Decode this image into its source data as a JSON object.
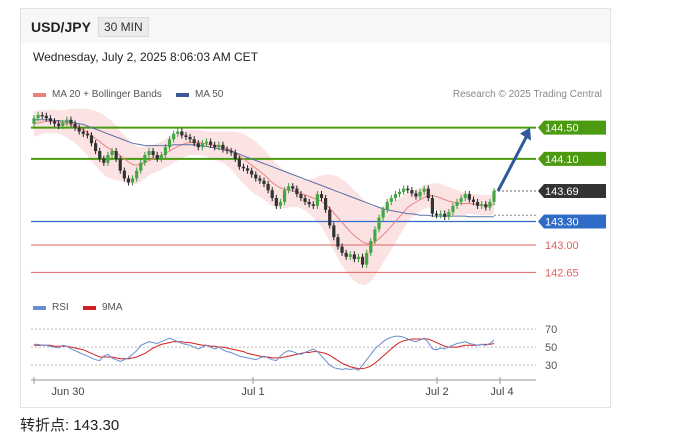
{
  "header": {
    "symbol": "USD/JPY",
    "timeframe": "30 MIN"
  },
  "timestamp": "Wednesday, July 2, 2025 8:06:03 AM CET",
  "legend_main": [
    {
      "label": "MA 20 + Bollinger Bands",
      "color": "#f08080"
    },
    {
      "label": "MA 50",
      "color": "#3a5a9a"
    }
  ],
  "legend_rsi": [
    {
      "label": "RSI",
      "color": "#6a8ed0"
    },
    {
      "label": "9MA",
      "color": "#d42020"
    }
  ],
  "copyright": "Research © 2025 Trading Central",
  "footer": {
    "pivot_text": "转折点: 143.30"
  },
  "colors": {
    "resistance": "#4c9a10",
    "pivot": "#2f6cc7",
    "support": "#e06060",
    "price": "#333333",
    "arrow": "#2f5a9a"
  },
  "chart_data": {
    "type": "candlestick",
    "ylim": [
      142.4,
      144.75
    ],
    "x_tick_labels": [
      "Jun 30",
      "Jul 1",
      "Jul 2",
      "Jul 4"
    ],
    "levels": [
      {
        "value": 144.5,
        "label": "144.50",
        "kind": "resistance"
      },
      {
        "value": 144.1,
        "label": "144.10",
        "kind": "resistance"
      },
      {
        "value": 143.69,
        "label": "143.69",
        "kind": "price"
      },
      {
        "value": 143.3,
        "label": "143.30",
        "kind": "pivot"
      },
      {
        "value": 143.0,
        "label": "143.00",
        "kind": "support"
      },
      {
        "value": 142.65,
        "label": "142.65",
        "kind": "support"
      }
    ],
    "close": [
      144.62,
      144.66,
      144.65,
      144.62,
      144.58,
      144.55,
      144.52,
      144.56,
      144.6,
      144.55,
      144.5,
      144.45,
      144.42,
      144.4,
      144.3,
      144.2,
      144.1,
      144.05,
      144.15,
      144.2,
      144.1,
      143.95,
      143.85,
      143.8,
      143.85,
      143.95,
      144.05,
      144.15,
      144.2,
      144.15,
      144.1,
      144.15,
      144.25,
      144.35,
      144.42,
      144.45,
      144.4,
      144.38,
      144.35,
      144.3,
      144.25,
      144.3,
      144.32,
      144.28,
      144.25,
      144.28,
      144.22,
      144.2,
      144.18,
      144.1,
      144.0,
      143.98,
      143.95,
      143.9,
      143.85,
      143.82,
      143.78,
      143.7,
      143.6,
      143.5,
      143.55,
      143.7,
      143.75,
      143.72,
      143.65,
      143.6,
      143.55,
      143.52,
      143.5,
      143.65,
      143.6,
      143.45,
      143.25,
      143.1,
      142.98,
      142.9,
      142.85,
      142.88,
      142.82,
      142.85,
      142.75,
      142.9,
      143.05,
      143.2,
      143.35,
      143.45,
      143.55,
      143.6,
      143.65,
      143.68,
      143.72,
      143.7,
      143.66,
      143.62,
      143.68,
      143.72,
      143.6,
      143.4,
      143.38,
      143.4,
      143.36,
      143.42,
      143.5,
      143.55,
      143.6,
      143.65,
      143.58,
      143.55,
      143.5,
      143.52,
      143.48,
      143.55,
      143.69
    ],
    "open": [
      144.55,
      144.62,
      144.66,
      144.65,
      144.62,
      144.58,
      144.55,
      144.52,
      144.56,
      144.6,
      144.55,
      144.5,
      144.45,
      144.42,
      144.4,
      144.3,
      144.2,
      144.1,
      144.05,
      144.15,
      144.2,
      144.1,
      143.95,
      143.85,
      143.8,
      143.85,
      143.95,
      144.05,
      144.15,
      144.2,
      144.15,
      144.1,
      144.15,
      144.25,
      144.35,
      144.42,
      144.45,
      144.4,
      144.38,
      144.35,
      144.3,
      144.25,
      144.3,
      144.32,
      144.28,
      144.25,
      144.28,
      144.22,
      144.2,
      144.18,
      144.1,
      144.0,
      143.98,
      143.95,
      143.9,
      143.85,
      143.82,
      143.78,
      143.7,
      143.6,
      143.5,
      143.55,
      143.7,
      143.75,
      143.72,
      143.65,
      143.6,
      143.55,
      143.52,
      143.5,
      143.65,
      143.6,
      143.45,
      143.25,
      143.1,
      142.98,
      142.9,
      142.85,
      142.88,
      142.82,
      142.85,
      142.75,
      142.9,
      143.05,
      143.2,
      143.35,
      143.45,
      143.55,
      143.6,
      143.65,
      143.68,
      143.72,
      143.7,
      143.66,
      143.62,
      143.68,
      143.72,
      143.6,
      143.4,
      143.38,
      143.4,
      143.36,
      143.42,
      143.5,
      143.55,
      143.6,
      143.65,
      143.58,
      143.55,
      143.5,
      143.52,
      143.48,
      143.55
    ],
    "ma20": [
      144.55,
      144.56,
      144.57,
      144.58,
      144.58,
      144.58,
      144.57,
      144.56,
      144.55,
      144.54,
      144.52,
      144.5,
      144.47,
      144.44,
      144.4,
      144.36,
      144.32,
      144.28,
      144.24,
      144.21,
      144.18,
      144.14,
      144.1,
      144.06,
      144.03,
      144.02,
      144.03,
      144.05,
      144.08,
      144.1,
      144.12,
      144.14,
      144.17,
      144.2,
      144.23,
      144.26,
      144.28,
      144.3,
      144.31,
      144.31,
      144.31,
      144.3,
      144.29,
      144.28,
      144.27,
      144.26,
      144.25,
      144.23,
      144.21,
      144.18,
      144.14,
      144.1,
      144.06,
      144.02,
      143.98,
      143.94,
      143.9,
      143.85,
      143.8,
      143.76,
      143.73,
      143.71,
      143.7,
      143.69,
      143.68,
      143.66,
      143.64,
      143.62,
      143.6,
      143.58,
      143.56,
      143.52,
      143.47,
      143.41,
      143.35,
      143.29,
      143.23,
      143.17,
      143.12,
      143.08,
      143.04,
      143.02,
      143.02,
      143.04,
      143.08,
      143.13,
      143.18,
      143.24,
      143.3,
      143.36,
      143.42,
      143.48,
      143.52,
      143.55,
      143.58,
      143.61,
      143.63,
      143.63,
      143.62,
      143.6,
      143.58,
      143.56,
      143.55,
      143.54,
      143.53,
      143.53,
      143.53,
      143.52,
      143.52,
      143.51,
      143.51,
      143.51,
      143.52
    ],
    "ma50": [
      144.6,
      144.6,
      144.6,
      144.6,
      144.6,
      144.59,
      144.59,
      144.58,
      144.58,
      144.57,
      144.56,
      144.55,
      144.54,
      144.52,
      144.5,
      144.48,
      144.46,
      144.44,
      144.42,
      144.4,
      144.38,
      144.36,
      144.34,
      144.32,
      144.3,
      144.29,
      144.28,
      144.27,
      144.27,
      144.27,
      144.27,
      144.27,
      144.27,
      144.27,
      144.28,
      144.28,
      144.28,
      144.28,
      144.28,
      144.28,
      144.27,
      144.27,
      144.26,
      144.25,
      144.24,
      144.23,
      144.22,
      144.21,
      144.2,
      144.18,
      144.16,
      144.14,
      144.12,
      144.1,
      144.08,
      144.06,
      144.04,
      144.02,
      144.0,
      143.98,
      143.96,
      143.94,
      143.92,
      143.9,
      143.88,
      143.86,
      143.84,
      143.82,
      143.8,
      143.78,
      143.76,
      143.74,
      143.72,
      143.7,
      143.68,
      143.66,
      143.64,
      143.62,
      143.6,
      143.58,
      143.56,
      143.54,
      143.52,
      143.5,
      143.48,
      143.46,
      143.45,
      143.44,
      143.43,
      143.42,
      143.41,
      143.4,
      143.4,
      143.39,
      143.38,
      143.38,
      143.38,
      143.37,
      143.37,
      143.37,
      143.37,
      143.37,
      143.37,
      143.37,
      143.37,
      143.37,
      143.36,
      143.36,
      143.36,
      143.36,
      143.36,
      143.36,
      143.36
    ],
    "band_width": [
      0.16,
      0.16,
      0.15,
      0.15,
      0.15,
      0.15,
      0.15,
      0.16,
      0.18,
      0.2,
      0.22,
      0.24,
      0.27,
      0.3,
      0.33,
      0.35,
      0.37,
      0.38,
      0.38,
      0.37,
      0.35,
      0.32,
      0.3,
      0.28,
      0.26,
      0.24,
      0.22,
      0.2,
      0.19,
      0.18,
      0.18,
      0.18,
      0.18,
      0.18,
      0.18,
      0.18,
      0.17,
      0.17,
      0.16,
      0.16,
      0.16,
      0.16,
      0.16,
      0.17,
      0.18,
      0.19,
      0.2,
      0.22,
      0.24,
      0.27,
      0.3,
      0.32,
      0.33,
      0.34,
      0.34,
      0.33,
      0.32,
      0.31,
      0.3,
      0.28,
      0.26,
      0.24,
      0.22,
      0.2,
      0.19,
      0.19,
      0.2,
      0.22,
      0.25,
      0.29,
      0.33,
      0.38,
      0.43,
      0.48,
      0.52,
      0.55,
      0.57,
      0.58,
      0.58,
      0.57,
      0.55,
      0.52,
      0.48,
      0.44,
      0.4,
      0.36,
      0.33,
      0.3,
      0.27,
      0.24,
      0.21,
      0.19,
      0.17,
      0.16,
      0.15,
      0.15,
      0.15,
      0.16,
      0.17,
      0.18,
      0.18,
      0.18,
      0.17,
      0.16,
      0.15,
      0.14,
      0.13,
      0.13,
      0.13,
      0.13,
      0.13,
      0.13,
      0.13
    ],
    "rsi_ylim": [
      20,
      78
    ],
    "rsi_ticks": [
      70,
      50,
      30
    ],
    "rsi": [
      53,
      53,
      52,
      52,
      51,
      50,
      49,
      52,
      51,
      48,
      46,
      44,
      42,
      40,
      38,
      36,
      35,
      40,
      42,
      38,
      36,
      34,
      36,
      38,
      42,
      46,
      52,
      54,
      56,
      55,
      54,
      56,
      58,
      60,
      58,
      56,
      54,
      53,
      52,
      50,
      48,
      50,
      52,
      50,
      48,
      50,
      47,
      45,
      44,
      42,
      40,
      39,
      38,
      37,
      36,
      38,
      40,
      38,
      36,
      35,
      40,
      44,
      46,
      45,
      43,
      42,
      44,
      46,
      48,
      45,
      40,
      35,
      30,
      27,
      26,
      25,
      26,
      25,
      26,
      24,
      30,
      36,
      42,
      48,
      52,
      56,
      59,
      61,
      62,
      62,
      61,
      59,
      57,
      56,
      58,
      60,
      55,
      48,
      47,
      49,
      48,
      50,
      52,
      54,
      55,
      56,
      54,
      53,
      52,
      53,
      52,
      54,
      58
    ],
    "rsi_ma": [
      52,
      52,
      52,
      52,
      52,
      51,
      51,
      51,
      51,
      50,
      49,
      48,
      47,
      45,
      43,
      41,
      39,
      39,
      39,
      39,
      38,
      37,
      37,
      37,
      38,
      39,
      41,
      43,
      46,
      49,
      51,
      53,
      54,
      55,
      56,
      56,
      56,
      55,
      55,
      54,
      53,
      52,
      52,
      51,
      51,
      50,
      50,
      49,
      48,
      47,
      46,
      45,
      43,
      42,
      41,
      40,
      39,
      39,
      38,
      38,
      38,
      39,
      40,
      41,
      42,
      43,
      44,
      44,
      45,
      45,
      44,
      43,
      41,
      38,
      35,
      32,
      30,
      28,
      27,
      26,
      26,
      27,
      29,
      32,
      36,
      40,
      44,
      48,
      52,
      55,
      57,
      58,
      59,
      59,
      59,
      59,
      59,
      57,
      55,
      53,
      51,
      50,
      50,
      50,
      51,
      52,
      52,
      52,
      52,
      53,
      53,
      53,
      54
    ]
  }
}
